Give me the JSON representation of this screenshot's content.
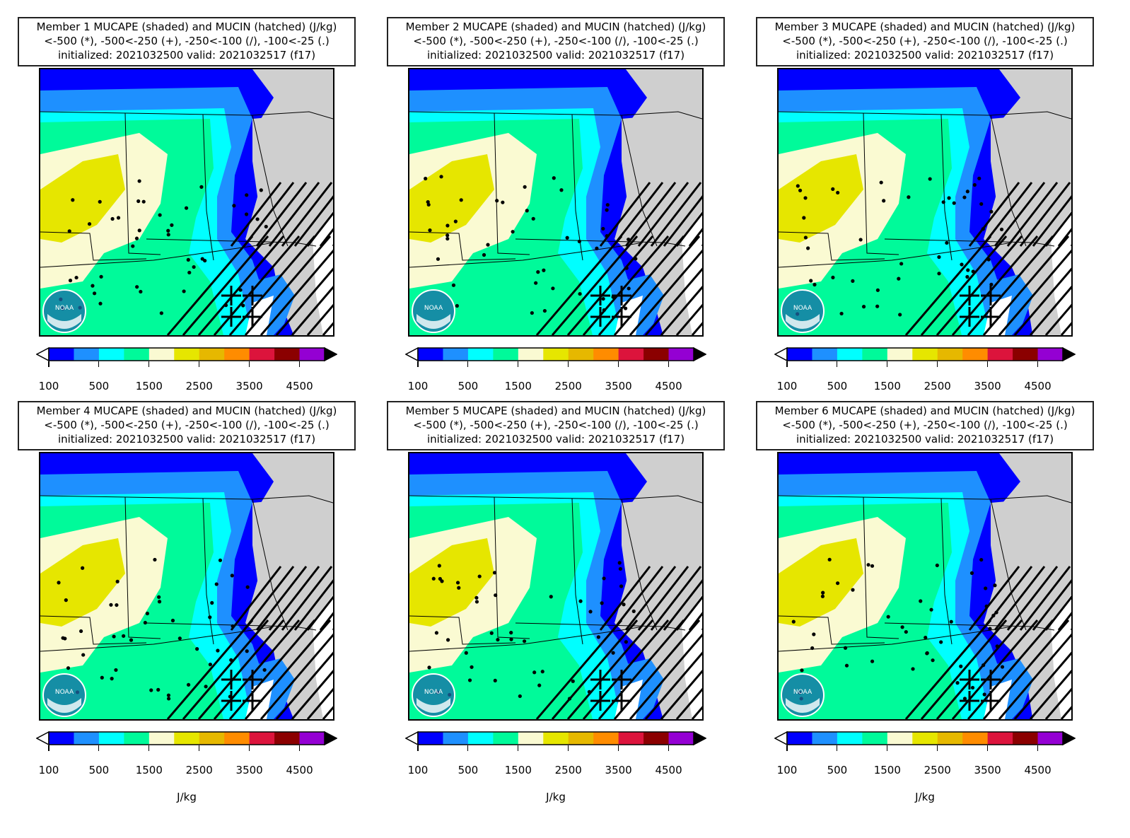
{
  "figure": {
    "panels": [
      {
        "id": "member-1",
        "title_lines": [
          "Member 1 MUCAPE (shaded) and MUCIN (hatched) (J/kg)",
          "<-500 (*), -500<-250 (+), -250<-100 (/), -100<-25 (.)",
          "initialized: 2021032500 valid: 2021032517 (f17)"
        ],
        "unit_label": ""
      },
      {
        "id": "member-2",
        "title_lines": [
          "Member 2 MUCAPE (shaded) and MUCIN (hatched) (J/kg)",
          "<-500 (*), -500<-250 (+), -250<-100 (/), -100<-25 (.)",
          "initialized: 2021032500 valid: 2021032517 (f17)"
        ],
        "unit_label": ""
      },
      {
        "id": "member-3",
        "title_lines": [
          "Member 3 MUCAPE (shaded) and MUCIN (hatched) (J/kg)",
          "<-500 (*), -500<-250 (+), -250<-100 (/), -100<-25 (.)",
          "initialized: 2021032500 valid: 2021032517 (f17)"
        ],
        "unit_label": ""
      },
      {
        "id": "member-4",
        "title_lines": [
          "Member 4 MUCAPE (shaded) and MUCIN (hatched) (J/kg)",
          "<-500 (*), -500<-250 (+), -250<-100 (/), -100<-25 (.)",
          "initialized: 2021032500 valid: 2021032517 (f17)"
        ],
        "unit_label": "J/kg"
      },
      {
        "id": "member-5",
        "title_lines": [
          "Member 5 MUCAPE (shaded) and MUCIN (hatched) (J/kg)",
          "<-500 (*), -500<-250 (+), -250<-100 (/), -100<-25 (.)",
          "initialized: 2021032500 valid: 2021032517 (f17)"
        ],
        "unit_label": "J/kg"
      },
      {
        "id": "member-6",
        "title_lines": [
          "Member 6 MUCAPE (shaded) and MUCIN (hatched) (J/kg)",
          "<-500 (*), -500<-250 (+), -250<-100 (/), -100<-25 (.)",
          "initialized: 2021032500 valid: 2021032517 (f17)"
        ],
        "unit_label": "J/kg"
      }
    ],
    "colorbar": {
      "tick_labels": [
        "100",
        "500",
        "1500",
        "2500",
        "3500",
        "4500"
      ],
      "colors": [
        "#0000ff",
        "#1e90ff",
        "#00ffff",
        "#00fa9a",
        "#fafad2",
        "#e6e600",
        "#e6b800",
        "#ff8c00",
        "#dc143c",
        "#8b0000",
        "#9400d3"
      ],
      "under_color": "#ffffff",
      "over_color": "#000000"
    },
    "map_colors": {
      "land_background": "#cfcfcf",
      "ocean_white": "#ffffff",
      "borders": "#000000"
    },
    "logo": {
      "name": "noaa-logo",
      "text": "NOAA"
    }
  }
}
